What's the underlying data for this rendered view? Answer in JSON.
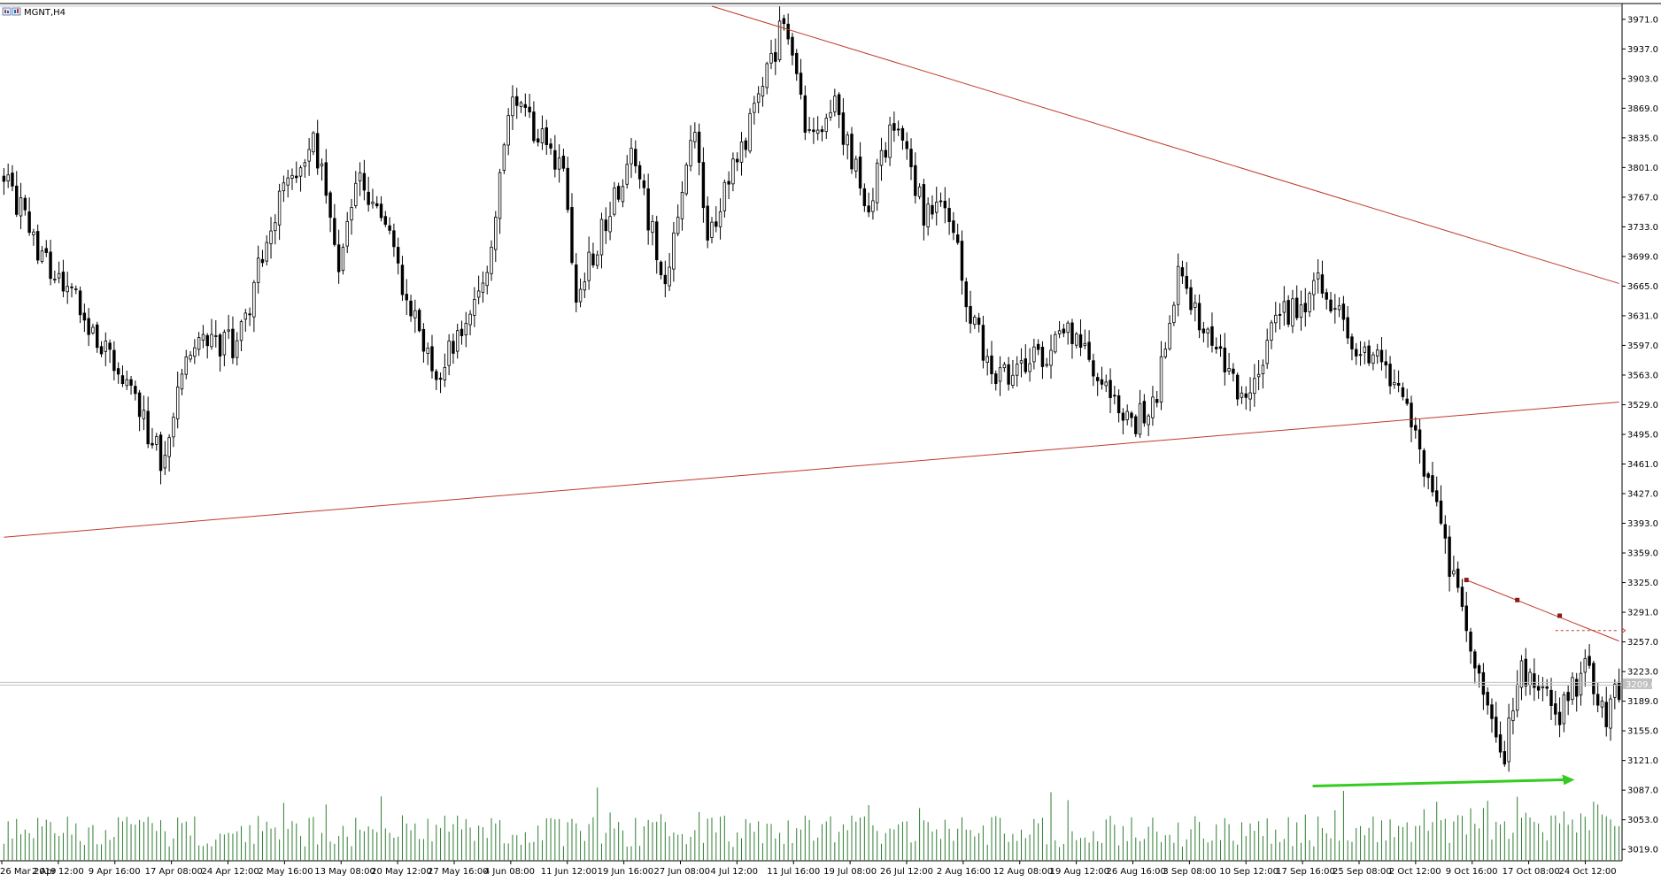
{
  "window": {
    "title": "MGNT,H4",
    "icon": "chart-window-icon"
  },
  "colors": {
    "background": "#ffffff",
    "candle": "#000000",
    "volume": "#2e7d32",
    "trendline": "#c0392b",
    "arrow": "#33cc1f",
    "price_tag_bg": "#c0c0c0",
    "price_tag_text": "#ffffff"
  },
  "chart_data": {
    "type": "candlestick",
    "symbol": "MGNT",
    "timeframe": "H4",
    "ylim": [
      3006,
      3986
    ],
    "y_ticks": [
      3971.0,
      3937.0,
      3903.0,
      3869.0,
      3835.0,
      3801.0,
      3767.0,
      3733.0,
      3699.0,
      3665.0,
      3631.0,
      3597.0,
      3563.0,
      3529.0,
      3495.0,
      3461.0,
      3427.0,
      3393.0,
      3359.0,
      3325.0,
      3291.0,
      3257.0,
      3223.0,
      3189.0,
      3155.0,
      3121.0,
      3087.0,
      3053.0,
      3019.0
    ],
    "y_tick_labels": [
      "3971.0",
      "3937.0",
      "3903.0",
      "3869.0",
      "3835.0",
      "3801.0",
      "3767.0",
      "3733.0",
      "3699.0",
      "3665.0",
      "3631.0",
      "3597.0",
      "3563.0",
      "3529.0",
      "3495.0",
      "3461.0",
      "3427.0",
      "3393.0",
      "3359.0",
      "3325.0",
      "3291.0",
      "3257.0",
      "3223.0",
      "3189.0",
      "3155.0",
      "3121.0",
      "3087.0",
      "3053.0",
      "3019.0"
    ],
    "current_price": 3209.0,
    "current_price_label": "3209.0",
    "x_labels": [
      "26 Mar 2019",
      "2 Apr 12:00",
      "9 Apr 16:00",
      "17 Apr 08:00",
      "24 Apr 12:00",
      "2 May 16:00",
      "13 May 08:00",
      "20 May 12:00",
      "27 May 16:00",
      "4 Jun 08:00",
      "11 Jun 12:00",
      "19 Jun 16:00",
      "27 Jun 08:00",
      "4 Jul 12:00",
      "11 Jul 16:00",
      "19 Jul 08:00",
      "26 Jul 12:00",
      "2 Aug 16:00",
      "12 Aug 08:00",
      "19 Aug 12:00",
      "26 Aug 16:00",
      "3 Sep 08:00",
      "10 Sep 12:00",
      "17 Sep 16:00",
      "25 Sep 08:00",
      "2 Oct 12:00",
      "9 Oct 16:00",
      "17 Oct 08:00",
      "24 Oct 12:00"
    ],
    "bar_count": 382,
    "anchors": [
      [
        0,
        3800
      ],
      [
        8,
        3700
      ],
      [
        18,
        3640
      ],
      [
        28,
        3560
      ],
      [
        37,
        3470
      ],
      [
        44,
        3590
      ],
      [
        55,
        3600
      ],
      [
        66,
        3780
      ],
      [
        73,
        3840
      ],
      [
        79,
        3690
      ],
      [
        84,
        3790
      ],
      [
        91,
        3720
      ],
      [
        99,
        3590
      ],
      [
        102,
        3560
      ],
      [
        113,
        3660
      ],
      [
        120,
        3880
      ],
      [
        132,
        3800
      ],
      [
        135,
        3650
      ],
      [
        148,
        3820
      ],
      [
        156,
        3670
      ],
      [
        163,
        3840
      ],
      [
        166,
        3720
      ],
      [
        177,
        3860
      ],
      [
        184,
        3970
      ],
      [
        190,
        3830
      ],
      [
        196,
        3870
      ],
      [
        204,
        3760
      ],
      [
        210,
        3860
      ],
      [
        213,
        3810
      ],
      [
        217,
        3750
      ],
      [
        222,
        3770
      ],
      [
        228,
        3630
      ],
      [
        234,
        3560
      ],
      [
        242,
        3580
      ],
      [
        252,
        3610
      ],
      [
        260,
        3540
      ],
      [
        267,
        3510
      ],
      [
        272,
        3540
      ],
      [
        277,
        3690
      ],
      [
        282,
        3630
      ],
      [
        288,
        3570
      ],
      [
        294,
        3530
      ],
      [
        300,
        3630
      ],
      [
        308,
        3640
      ],
      [
        310,
        3670
      ],
      [
        318,
        3600
      ],
      [
        324,
        3585
      ],
      [
        332,
        3510
      ],
      [
        337,
        3420
      ],
      [
        345,
        3270
      ],
      [
        354,
        3130
      ],
      [
        358,
        3225
      ],
      [
        367,
        3175
      ],
      [
        373,
        3225
      ],
      [
        378,
        3170
      ],
      [
        381,
        3205
      ]
    ],
    "volume_ylim": [
      0,
      10
    ],
    "trendlines": [
      {
        "name": "descending-resistance",
        "start": [
          167.0,
          3986
        ],
        "end": [
          381.0,
          3668
        ]
      },
      {
        "name": "ascending-support",
        "start": [
          0,
          3377
        ],
        "end": [
          381.0,
          3532
        ]
      },
      {
        "name": "short-term-resistance",
        "start": [
          345.0,
          3328
        ],
        "end": [
          381.0,
          3258
        ]
      }
    ],
    "trendline_markers": [
      [
        345.0,
        3328
      ],
      [
        357.0,
        3305
      ],
      [
        367.0,
        3287
      ]
    ],
    "dashed_level": {
      "start": [
        366.0,
        3270
      ],
      "end": [
        381.0,
        3270
      ]
    },
    "annotation_arrow": {
      "from_bar": 309.0,
      "to_bar": 370.5,
      "volume_from": 8.2,
      "volume_to": 8.9
    }
  }
}
